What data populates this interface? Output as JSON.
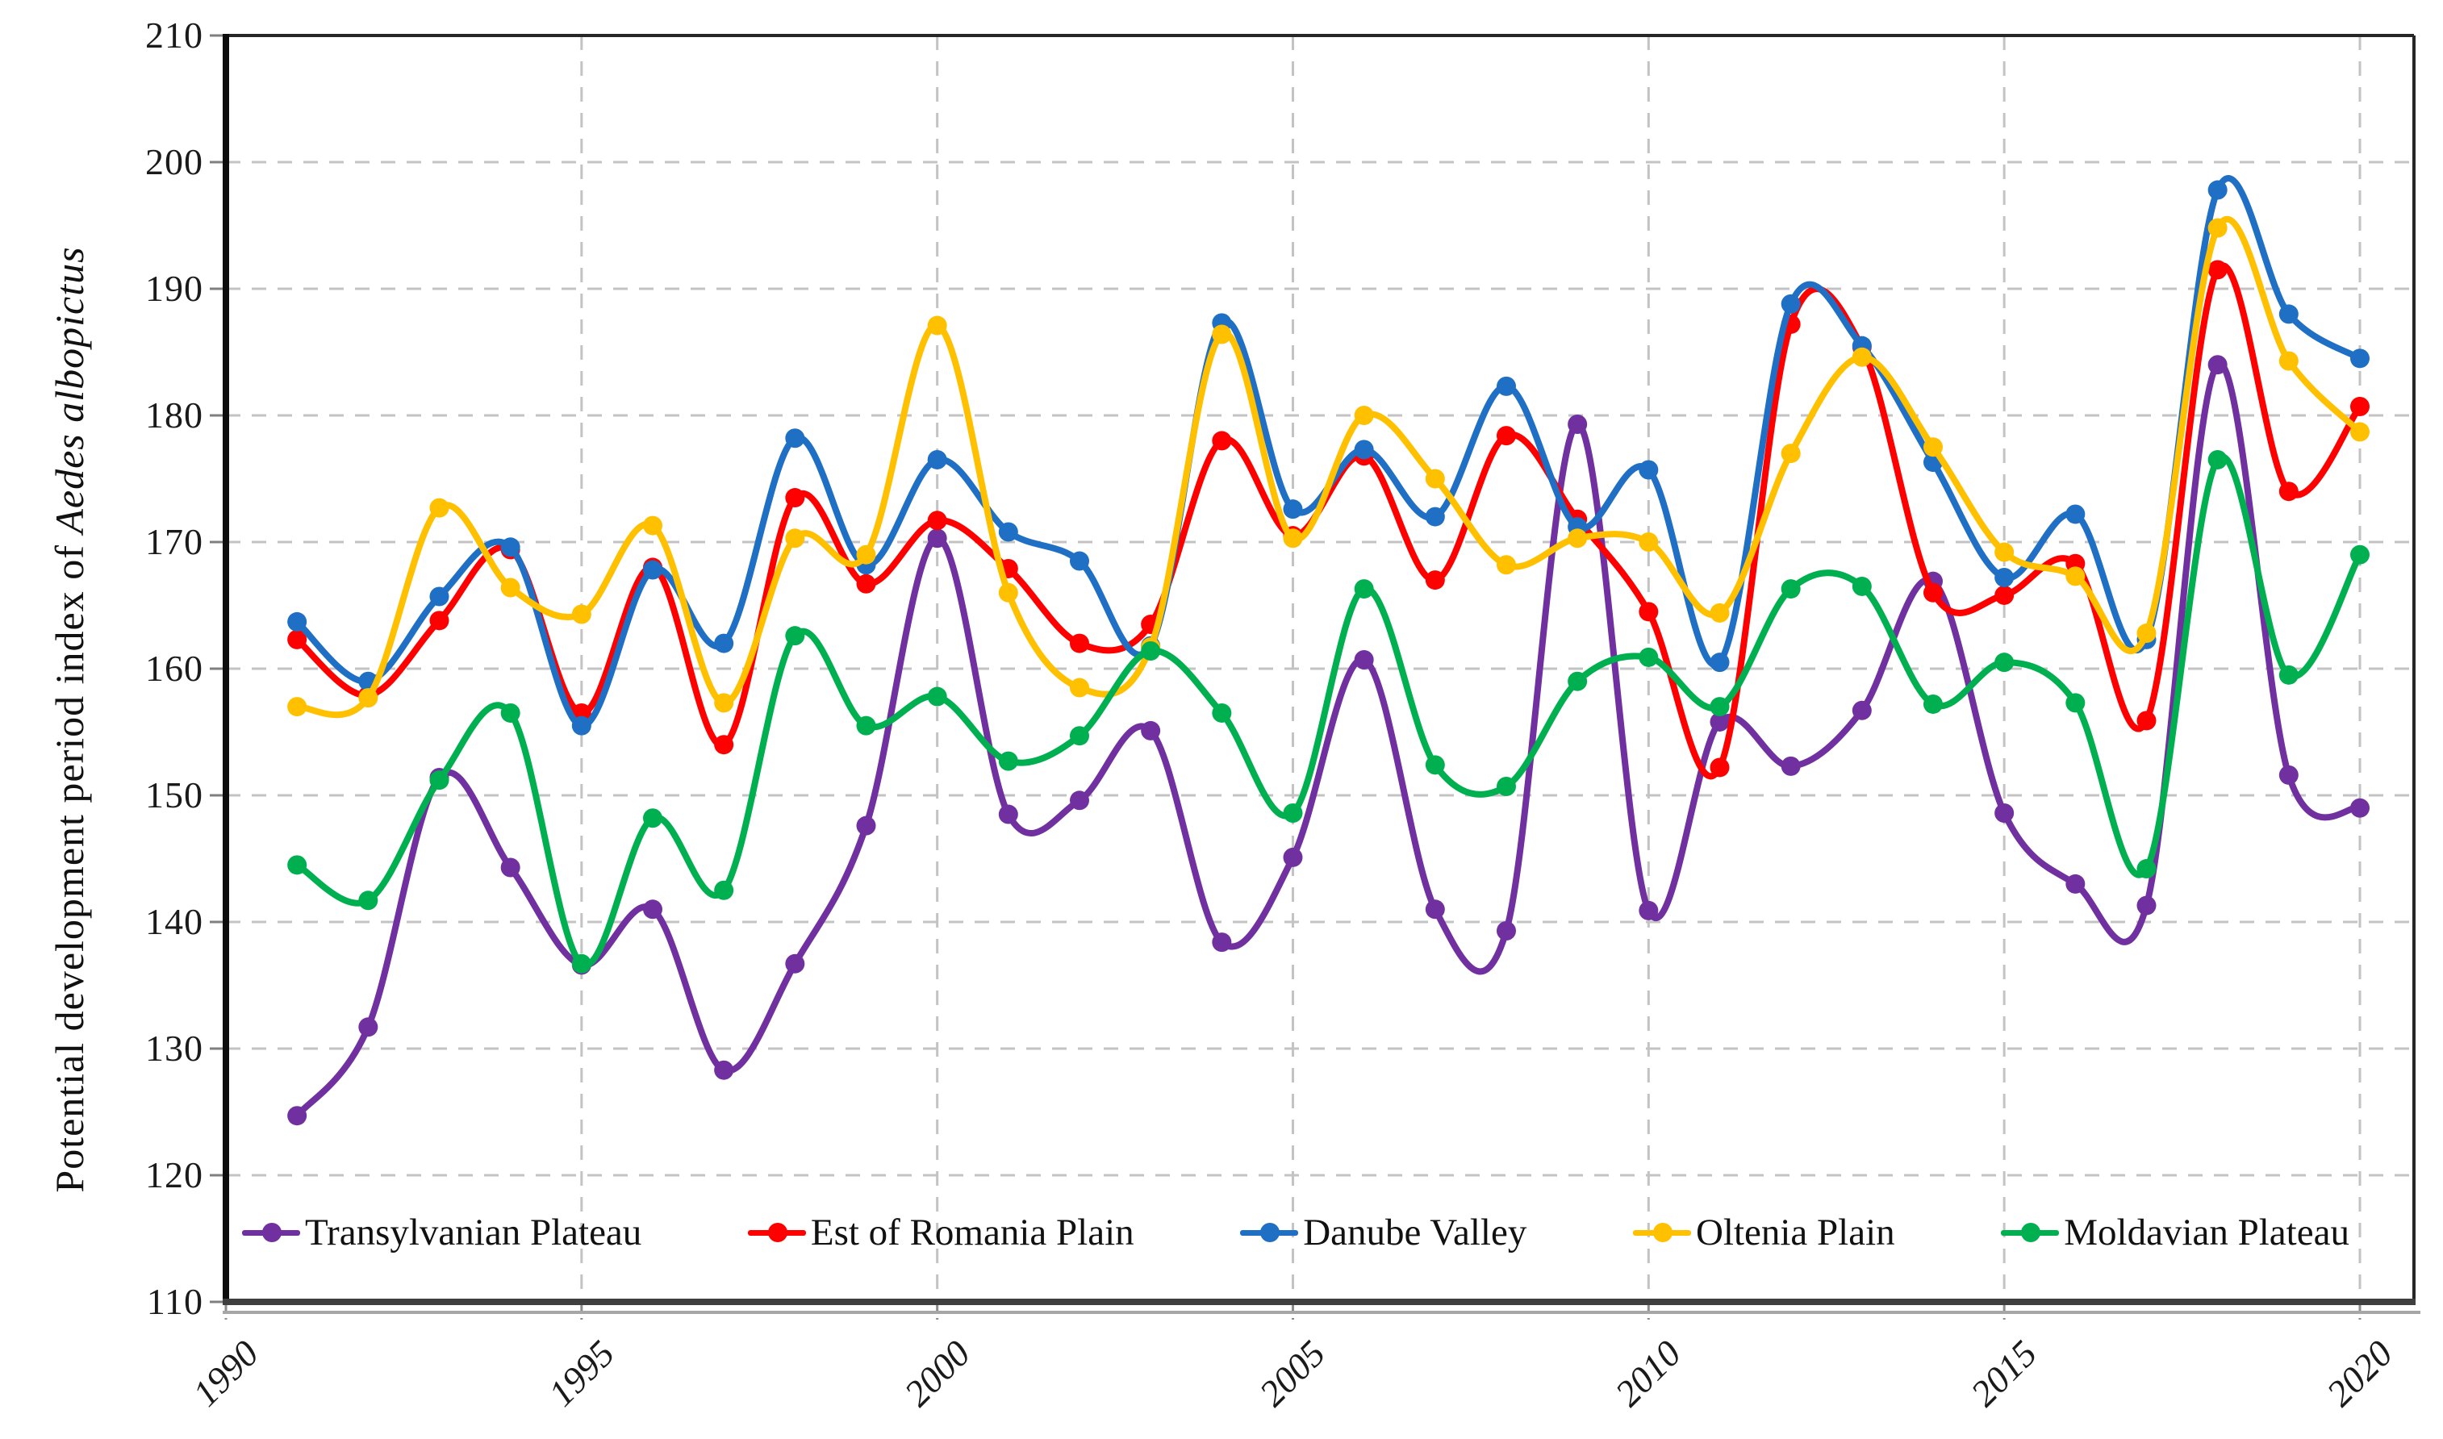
{
  "figure": {
    "y_axis_title_prefix": "Potential development period index of ",
    "y_axis_title_species": "Aedes albopictus"
  },
  "chart_data": {
    "type": "line",
    "title": "",
    "xlabel": "",
    "ylabel": "Potential development period index of Aedes albopictus",
    "x": [
      1991,
      1992,
      1993,
      1994,
      1995,
      1996,
      1997,
      1998,
      1999,
      2000,
      2001,
      2002,
      2003,
      2004,
      2005,
      2006,
      2007,
      2008,
      2009,
      2010,
      2011,
      2012,
      2013,
      2014,
      2015,
      2016,
      2017,
      2018,
      2019,
      2020
    ],
    "x_ticks": [
      1990,
      1995,
      2000,
      2005,
      2010,
      2015,
      2020
    ],
    "y_ticks": [
      110,
      120,
      130,
      140,
      150,
      160,
      170,
      180,
      190,
      200,
      210
    ],
    "xlim": [
      1990,
      2020.76
    ],
    "ylim": [
      110,
      210
    ],
    "grid": {
      "horizontal": true,
      "vertical": true,
      "style": "dashed",
      "color": "#c3c3c3"
    },
    "legend_position": "bottom-inside",
    "marker": "circle",
    "smooth_lines": true,
    "series": [
      {
        "name": "Transylvanian Plateau",
        "color": "#7030A0",
        "values": [
          124.7,
          131.7,
          151.4,
          144.3,
          136.6,
          141.0,
          128.3,
          136.7,
          147.6,
          170.3,
          148.5,
          149.6,
          155.1,
          138.4,
          145.1,
          160.7,
          141.0,
          139.3,
          179.3,
          140.9,
          155.8,
          152.3,
          156.7,
          166.9,
          148.6,
          143.0,
          141.3,
          184.0,
          151.6,
          149.0
        ]
      },
      {
        "name": "Est of Romania Plain",
        "color": "#FE0000",
        "values": [
          162.3,
          157.9,
          163.8,
          169.4,
          156.5,
          168.0,
          154.0,
          173.5,
          166.7,
          171.7,
          167.9,
          162.0,
          163.5,
          178.0,
          170.5,
          176.8,
          167.0,
          178.4,
          171.8,
          164.5,
          152.2,
          187.2,
          185.4,
          166.0,
          165.8,
          168.3,
          155.9,
          191.5,
          174.0,
          180.7
        ]
      },
      {
        "name": "Danube Valley",
        "color": "#1F6FC5",
        "values": [
          163.7,
          159.0,
          165.7,
          169.6,
          155.5,
          167.8,
          162.0,
          178.2,
          168.2,
          176.5,
          170.8,
          168.5,
          161.8,
          187.3,
          172.6,
          177.3,
          172.0,
          182.3,
          171.2,
          175.7,
          160.5,
          188.8,
          185.5,
          176.3,
          167.2,
          172.2,
          162.3,
          197.8,
          188.0,
          184.5
        ]
      },
      {
        "name": "Oltenia Plain",
        "color": "#FFC000",
        "values": [
          157.0,
          157.7,
          172.7,
          166.4,
          164.3,
          171.3,
          157.3,
          170.3,
          169.0,
          187.1,
          166.0,
          158.5,
          161.7,
          186.4,
          170.3,
          180.0,
          175.0,
          168.2,
          170.3,
          170.0,
          164.4,
          177.0,
          184.6,
          177.5,
          169.2,
          167.3,
          162.8,
          194.8,
          184.3,
          178.7
        ]
      },
      {
        "name": "Moldavian Plateau",
        "color": "#00B050",
        "values": [
          144.5,
          141.7,
          151.2,
          156.5,
          136.7,
          148.2,
          142.5,
          162.6,
          155.5,
          157.8,
          152.7,
          154.7,
          161.4,
          156.5,
          148.6,
          166.3,
          152.4,
          150.7,
          159.0,
          160.9,
          157.0,
          166.3,
          166.5,
          157.2,
          160.5,
          157.3,
          144.2,
          176.5,
          159.5,
          169.0
        ]
      }
    ]
  }
}
